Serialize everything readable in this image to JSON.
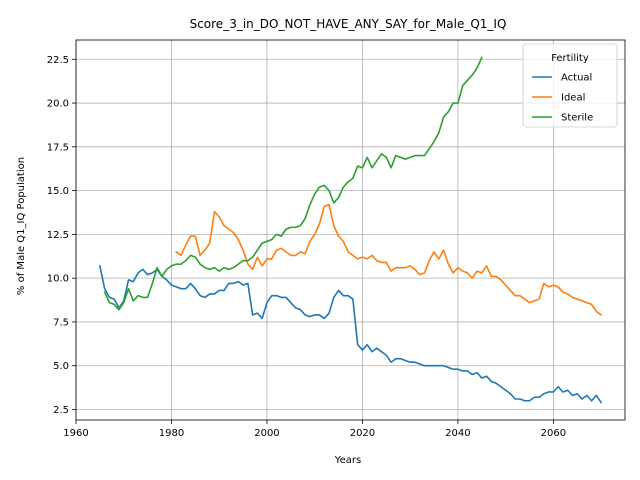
{
  "chart_data": {
    "type": "line",
    "title": "Score_3_in_DO_NOT_HAVE_ANY_SAY_for_Male_Q1_IQ",
    "xlabel": "Years",
    "ylabel": "% of Male Q1_IQ Population",
    "xlim": [
      1960,
      2075
    ],
    "ylim": [
      1.9,
      23.6
    ],
    "xticks": [
      1960,
      1980,
      2000,
      2020,
      2040,
      2060
    ],
    "yticks": [
      2.5,
      5.0,
      7.5,
      10.0,
      12.5,
      15.0,
      17.5,
      20.0,
      22.5
    ],
    "grid": true,
    "legend": {
      "title": "Fertility",
      "placement": "top-right"
    },
    "series": [
      {
        "name": "Actual",
        "color": "#1f77b4",
        "x": [
          1965,
          1966,
          1967,
          1968,
          1969,
          1970,
          1971,
          1972,
          1973,
          1974,
          1975,
          1976,
          1977,
          1978,
          1979,
          1980,
          1981,
          1982,
          1983,
          1984,
          1985,
          1986,
          1987,
          1988,
          1989,
          1990,
          1991,
          1992,
          1993,
          1994,
          1995,
          1996,
          1997,
          1998,
          1999,
          2000,
          2001,
          2002,
          2003,
          2004,
          2005,
          2006,
          2007,
          2008,
          2009,
          2010,
          2011,
          2012,
          2013,
          2014,
          2015,
          2016,
          2017,
          2018,
          2019,
          2020,
          2021,
          2022,
          2023,
          2024,
          2025,
          2026,
          2027,
          2028,
          2029,
          2030,
          2031,
          2032,
          2033,
          2034,
          2035,
          2036,
          2037,
          2038,
          2039,
          2040,
          2041,
          2042,
          2043,
          2044,
          2045,
          2046,
          2047,
          2048,
          2049,
          2050,
          2051,
          2052,
          2053,
          2054,
          2055,
          2056,
          2057,
          2058,
          2059,
          2060,
          2061,
          2062,
          2063,
          2064,
          2065,
          2066,
          2067,
          2068,
          2069,
          2070
        ],
        "y": [
          10.7,
          9.4,
          8.9,
          8.8,
          8.3,
          8.7,
          9.9,
          9.8,
          10.3,
          10.5,
          10.2,
          10.3,
          10.5,
          10.1,
          9.9,
          9.6,
          9.5,
          9.4,
          9.4,
          9.7,
          9.4,
          9.0,
          8.9,
          9.1,
          9.1,
          9.3,
          9.3,
          9.7,
          9.7,
          9.8,
          9.6,
          9.7,
          7.9,
          8.0,
          7.7,
          8.6,
          9.0,
          9.0,
          8.9,
          8.9,
          8.6,
          8.3,
          8.2,
          7.9,
          7.8,
          7.9,
          7.9,
          7.7,
          8.0,
          8.9,
          9.3,
          9.0,
          9.0,
          8.8,
          6.2,
          5.9,
          6.2,
          5.8,
          6.0,
          5.8,
          5.6,
          5.2,
          5.4,
          5.4,
          5.3,
          5.2,
          5.2,
          5.1,
          5.0,
          5.0,
          5.0,
          5.0,
          5.0,
          4.9,
          4.8,
          4.8,
          4.7,
          4.7,
          4.5,
          4.6,
          4.3,
          4.4,
          4.1,
          4.0,
          3.8,
          3.6,
          3.4,
          3.1,
          3.1,
          3.0,
          3.0,
          3.2,
          3.2,
          3.4,
          3.5,
          3.5,
          3.8,
          3.5,
          3.6,
          3.3,
          3.4,
          3.1,
          3.3,
          3.0,
          3.3,
          2.9
        ]
      },
      {
        "name": "Ideal",
        "color": "#ff7f0e",
        "x": [
          1981,
          1982,
          1983,
          1984,
          1985,
          1986,
          1987,
          1988,
          1989,
          1990,
          1991,
          1992,
          1993,
          1994,
          1995,
          1996,
          1997,
          1998,
          1999,
          2000,
          2001,
          2002,
          2003,
          2004,
          2005,
          2006,
          2007,
          2008,
          2009,
          2010,
          2011,
          2012,
          2013,
          2014,
          2015,
          2016,
          2017,
          2018,
          2019,
          2020,
          2021,
          2022,
          2023,
          2024,
          2025,
          2026,
          2027,
          2028,
          2029,
          2030,
          2031,
          2032,
          2033,
          2034,
          2035,
          2036,
          2037,
          2038,
          2039,
          2040,
          2041,
          2042,
          2043,
          2044,
          2045,
          2046,
          2047,
          2048,
          2049,
          2050,
          2051,
          2052,
          2053,
          2054,
          2055,
          2056,
          2057,
          2058,
          2059,
          2060,
          2061,
          2062,
          2063,
          2064,
          2065,
          2066,
          2067,
          2068,
          2069,
          2070
        ],
        "y": [
          11.5,
          11.3,
          11.9,
          12.4,
          12.4,
          11.3,
          11.6,
          12.0,
          13.8,
          13.5,
          13.0,
          12.8,
          12.6,
          12.2,
          11.6,
          10.8,
          10.5,
          11.2,
          10.7,
          11.1,
          11.1,
          11.6,
          11.7,
          11.5,
          11.3,
          11.3,
          11.5,
          11.4,
          12.1,
          12.5,
          13.1,
          14.1,
          14.2,
          13.0,
          12.4,
          12.1,
          11.5,
          11.3,
          11.1,
          11.2,
          11.1,
          11.3,
          11.0,
          10.9,
          10.9,
          10.4,
          10.6,
          10.6,
          10.6,
          10.7,
          10.5,
          10.2,
          10.3,
          11.0,
          11.5,
          11.1,
          11.6,
          10.8,
          10.3,
          10.6,
          10.4,
          10.3,
          10.0,
          10.4,
          10.3,
          10.7,
          10.1,
          10.1,
          9.9,
          9.6,
          9.3,
          9.0,
          9.0,
          8.8,
          8.6,
          8.7,
          8.8,
          9.7,
          9.5,
          9.6,
          9.5,
          9.2,
          9.1,
          8.9,
          8.8,
          8.7,
          8.6,
          8.5,
          8.1,
          7.9
        ]
      },
      {
        "name": "Sterile",
        "color": "#2ca02c",
        "x": [
          1966,
          1967,
          1968,
          1969,
          1970,
          1971,
          1972,
          1973,
          1974,
          1975,
          1976,
          1977,
          1978,
          1979,
          1980,
          1981,
          1982,
          1983,
          1984,
          1985,
          1986,
          1987,
          1988,
          1989,
          1990,
          1991,
          1992,
          1993,
          1994,
          1995,
          1996,
          1997,
          1998,
          1999,
          2000,
          2001,
          2002,
          2003,
          2004,
          2005,
          2006,
          2007,
          2008,
          2009,
          2010,
          2011,
          2012,
          2013,
          2014,
          2015,
          2016,
          2017,
          2018,
          2019,
          2020,
          2021,
          2022,
          2023,
          2024,
          2025,
          2026,
          2027,
          2028,
          2029,
          2030,
          2031,
          2032,
          2033,
          2034,
          2035,
          2036,
          2037,
          2038,
          2039,
          2040,
          2041,
          2042,
          2043,
          2044,
          2045
        ],
        "y": [
          9.2,
          8.6,
          8.5,
          8.2,
          8.6,
          9.4,
          8.7,
          9.0,
          8.9,
          8.9,
          9.7,
          10.6,
          10.1,
          10.5,
          10.7,
          10.8,
          10.8,
          11.0,
          11.3,
          11.2,
          10.8,
          10.6,
          10.5,
          10.6,
          10.4,
          10.6,
          10.5,
          10.6,
          10.8,
          11.0,
          11.0,
          11.2,
          11.6,
          12.0,
          12.1,
          12.2,
          12.5,
          12.4,
          12.8,
          12.9,
          12.9,
          13.0,
          13.4,
          14.2,
          14.8,
          15.2,
          15.3,
          15.0,
          14.3,
          14.6,
          15.2,
          15.5,
          15.7,
          16.4,
          16.3,
          16.9,
          16.3,
          16.7,
          17.1,
          16.9,
          16.3,
          17.0,
          16.9,
          16.8,
          16.9,
          17.0,
          17.0,
          17.0,
          17.4,
          17.8,
          18.3,
          19.2,
          19.5,
          20.0,
          20.0,
          21.0,
          21.3,
          21.6,
          22.0,
          22.6
        ]
      }
    ]
  }
}
